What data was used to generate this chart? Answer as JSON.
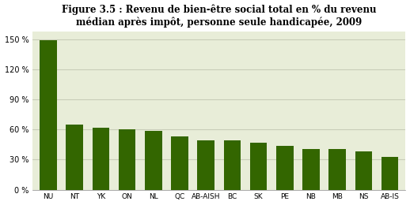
{
  "title": "Figure 3.5 : Revenu de bien-être social total en % du revenu\nmédian après impôt, personne seule handicapée, 2009",
  "categories": [
    "NU",
    "NT",
    "YK",
    "ON",
    "NL",
    "QC",
    "AB-AISH",
    "BC",
    "SK",
    "PE",
    "NB",
    "MB",
    "NS",
    "AB-IS"
  ],
  "values": [
    149,
    65,
    62,
    60,
    59,
    53,
    49,
    49,
    47,
    44,
    41,
    41,
    38,
    33
  ],
  "bar_color": "#336600",
  "fig_bg": "#ffffff",
  "plot_bg": "#e8edd8",
  "yticks": [
    0,
    30,
    60,
    90,
    120,
    150
  ],
  "ylim": [
    0,
    158
  ],
  "grid_color": "#c8cdb8"
}
